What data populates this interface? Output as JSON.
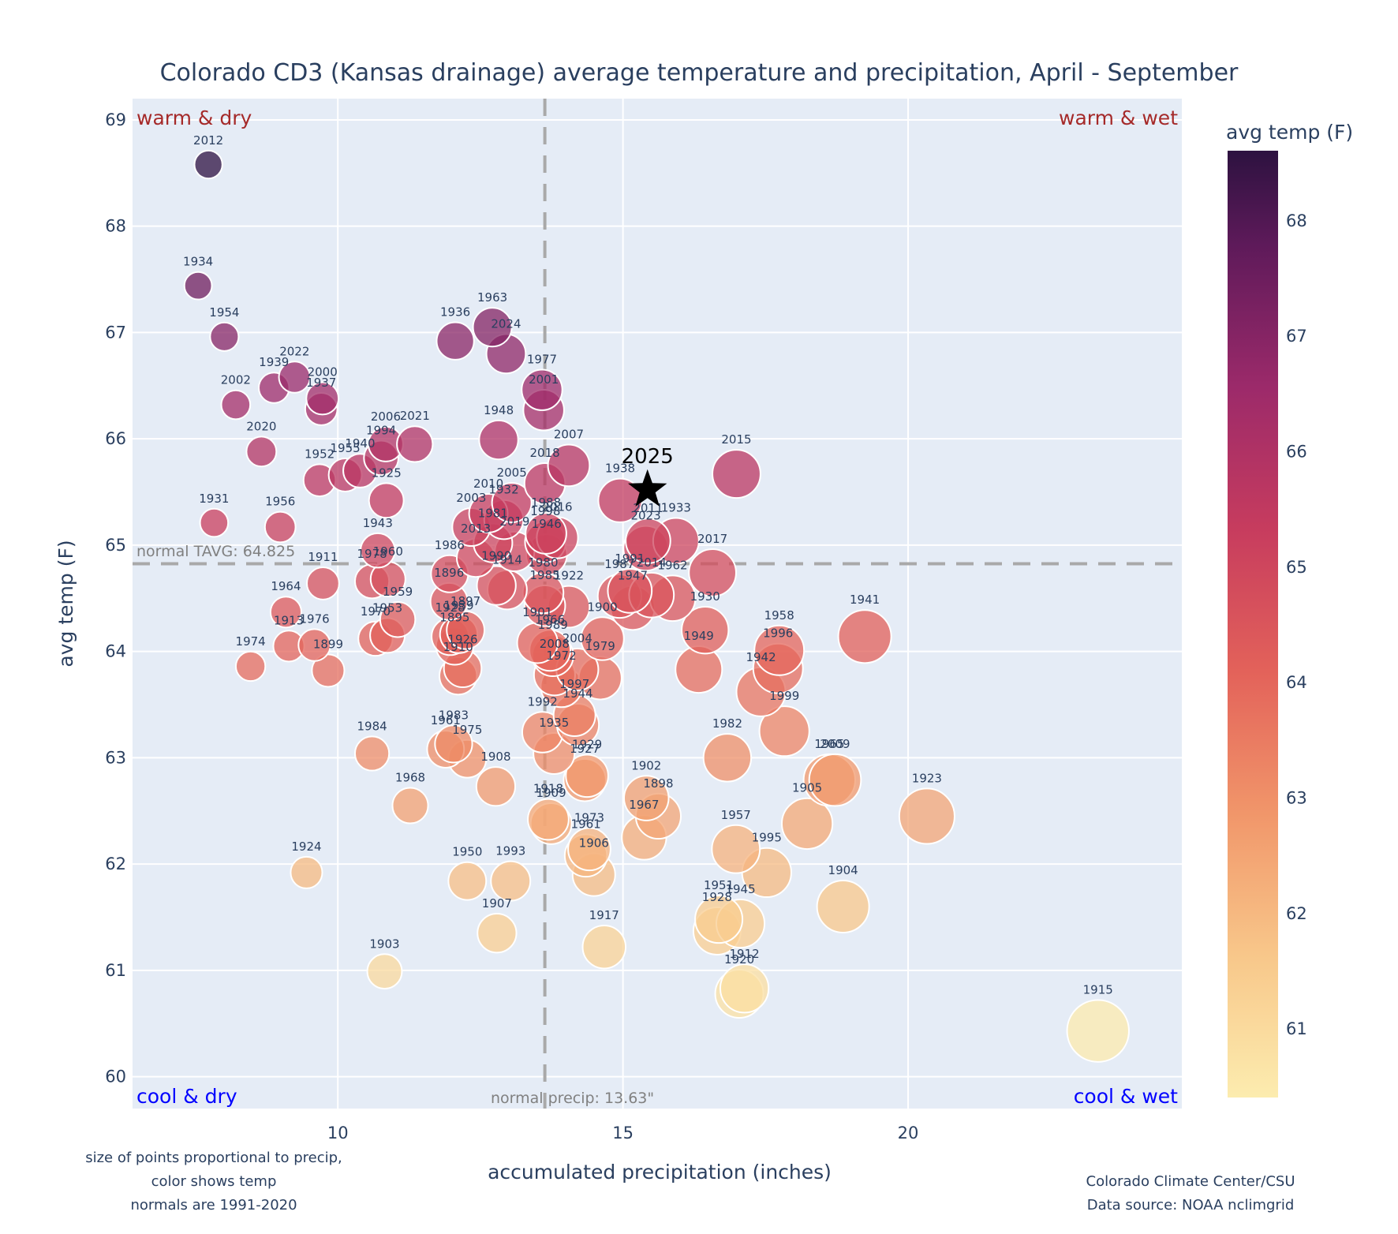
{
  "chart_data": {
    "type": "scatter",
    "title": "Colorado CD3 (Kansas drainage) average temperature and precipitation, April - September",
    "xlabel": "accumulated precipitation (inches)",
    "ylabel": "avg temp (F)",
    "xlim": [
      6.4,
      24.8
    ],
    "ylim": [
      59.7,
      69.2
    ],
    "xticks": [
      10,
      15,
      20
    ],
    "yticks": [
      60,
      61,
      62,
      63,
      64,
      65,
      66,
      67,
      68,
      69
    ],
    "grid": true,
    "colorbar": {
      "title": "avg temp (F)",
      "range": [
        60.4,
        68.6
      ],
      "ticks": [
        61,
        62,
        63,
        64,
        65,
        66,
        67,
        68
      ],
      "colormap": "magma_r"
    },
    "normals": {
      "tavg": 64.825,
      "tavg_label": "normal TAVG: 64.825",
      "precip": 13.63,
      "precip_label": "normal precip: 13.63\""
    },
    "quadrants": {
      "top_left": "warm & dry",
      "top_right": "warm & wet",
      "bottom_left": "cool & dry",
      "bottom_right": "cool & wet"
    },
    "highlight": {
      "year": "2025",
      "x": 15.43,
      "y": 65.52,
      "marker": "star"
    },
    "notes_left": [
      "size of points proportional to precip,",
      "color shows temp",
      "normals are 1991-2020"
    ],
    "notes_right": [
      "Colorado Climate Center/CSU",
      "Data source: NOAA nclimgrid"
    ],
    "points": [
      {
        "year": "2012",
        "x": 7.73,
        "y": 68.58
      },
      {
        "year": "1934",
        "x": 7.55,
        "y": 67.44
      },
      {
        "year": "1954",
        "x": 8.01,
        "y": 66.96
      },
      {
        "year": "1939",
        "x": 8.88,
        "y": 66.48
      },
      {
        "year": "2022",
        "x": 9.24,
        "y": 66.58
      },
      {
        "year": "2002",
        "x": 8.21,
        "y": 66.32
      },
      {
        "year": "2000",
        "x": 9.73,
        "y": 66.38
      },
      {
        "year": "1937",
        "x": 9.71,
        "y": 66.28
      },
      {
        "year": "2020",
        "x": 8.66,
        "y": 65.88
      },
      {
        "year": "1952",
        "x": 9.68,
        "y": 65.61
      },
      {
        "year": "1955",
        "x": 10.13,
        "y": 65.66
      },
      {
        "year": "1940",
        "x": 10.39,
        "y": 65.7
      },
      {
        "year": "2006",
        "x": 10.84,
        "y": 65.95
      },
      {
        "year": "1994",
        "x": 10.76,
        "y": 65.82
      },
      {
        "year": "2021",
        "x": 11.35,
        "y": 65.95
      },
      {
        "year": "1925",
        "x": 10.85,
        "y": 65.42
      },
      {
        "year": "1931",
        "x": 7.83,
        "y": 65.21
      },
      {
        "year": "1956",
        "x": 8.99,
        "y": 65.17
      },
      {
        "year": "1943",
        "x": 10.7,
        "y": 64.95
      },
      {
        "year": "1978",
        "x": 10.6,
        "y": 64.66
      },
      {
        "year": "1960",
        "x": 10.88,
        "y": 64.68
      },
      {
        "year": "1911",
        "x": 9.74,
        "y": 64.64
      },
      {
        "year": "1964",
        "x": 9.09,
        "y": 64.37
      },
      {
        "year": "1913",
        "x": 9.14,
        "y": 64.05
      },
      {
        "year": "1976",
        "x": 9.59,
        "y": 64.06
      },
      {
        "year": "1899",
        "x": 9.83,
        "y": 63.82
      },
      {
        "year": "1974",
        "x": 8.47,
        "y": 63.86
      },
      {
        "year": "1970",
        "x": 10.66,
        "y": 64.12
      },
      {
        "year": "1953",
        "x": 10.87,
        "y": 64.15
      },
      {
        "year": "1959",
        "x": 11.05,
        "y": 64.3
      },
      {
        "year": "1936",
        "x": 12.06,
        "y": 66.92
      },
      {
        "year": "1963",
        "x": 12.71,
        "y": 67.05
      },
      {
        "year": "2024",
        "x": 12.95,
        "y": 66.8
      },
      {
        "year": "1977",
        "x": 13.58,
        "y": 66.46
      },
      {
        "year": "2001",
        "x": 13.61,
        "y": 66.27
      },
      {
        "year": "1948",
        "x": 12.82,
        "y": 65.99
      },
      {
        "year": "2007",
        "x": 14.05,
        "y": 65.75
      },
      {
        "year": "2018",
        "x": 13.63,
        "y": 65.58
      },
      {
        "year": "2005",
        "x": 13.05,
        "y": 65.4
      },
      {
        "year": "2010",
        "x": 12.64,
        "y": 65.3
      },
      {
        "year": "1932",
        "x": 12.91,
        "y": 65.24
      },
      {
        "year": "2003",
        "x": 12.34,
        "y": 65.17
      },
      {
        "year": "1988",
        "x": 13.65,
        "y": 65.11
      },
      {
        "year": "1998",
        "x": 13.64,
        "y": 65.03
      },
      {
        "year": "2016",
        "x": 13.85,
        "y": 65.07
      },
      {
        "year": "1981",
        "x": 12.72,
        "y": 65.02
      },
      {
        "year": "2019",
        "x": 13.1,
        "y": 64.94
      },
      {
        "year": "2013",
        "x": 12.42,
        "y": 64.88
      },
      {
        "year": "1946",
        "x": 13.66,
        "y": 64.91
      },
      {
        "year": "1986",
        "x": 11.96,
        "y": 64.73
      },
      {
        "year": "1990",
        "x": 12.78,
        "y": 64.62
      },
      {
        "year": "1914",
        "x": 12.97,
        "y": 64.58
      },
      {
        "year": "1980",
        "x": 13.6,
        "y": 64.55
      },
      {
        "year": "1985",
        "x": 13.63,
        "y": 64.43
      },
      {
        "year": "1922",
        "x": 14.05,
        "y": 64.42
      },
      {
        "year": "1896",
        "x": 11.95,
        "y": 64.47
      },
      {
        "year": "1897",
        "x": 12.24,
        "y": 64.2
      },
      {
        "year": "1928",
        "x": 11.97,
        "y": 64.14
      },
      {
        "year": "1939b",
        "x": 12.12,
        "y": 64.16
      },
      {
        "year": "1895",
        "x": 12.05,
        "y": 64.05
      },
      {
        "year": "1926",
        "x": 12.19,
        "y": 63.84
      },
      {
        "year": "1910",
        "x": 12.11,
        "y": 63.77
      },
      {
        "year": "1901",
        "x": 13.5,
        "y": 64.08
      },
      {
        "year": "1966",
        "x": 13.72,
        "y": 64.01
      },
      {
        "year": "1938",
        "x": 14.95,
        "y": 65.42
      },
      {
        "year": "2023",
        "x": 15.4,
        "y": 64.97
      },
      {
        "year": "1933",
        "x": 15.93,
        "y": 65.04
      },
      {
        "year": "2011",
        "x": 15.44,
        "y": 65.04
      },
      {
        "year": "2015",
        "x": 16.99,
        "y": 65.67
      },
      {
        "year": "2017",
        "x": 16.57,
        "y": 64.74
      },
      {
        "year": "1991",
        "x": 15.12,
        "y": 64.57
      },
      {
        "year": "1987",
        "x": 14.94,
        "y": 64.52
      },
      {
        "year": "2014",
        "x": 15.5,
        "y": 64.53
      },
      {
        "year": "1962",
        "x": 15.87,
        "y": 64.5
      },
      {
        "year": "1947",
        "x": 15.17,
        "y": 64.41
      },
      {
        "year": "1900",
        "x": 14.64,
        "y": 64.12
      },
      {
        "year": "1930",
        "x": 16.44,
        "y": 64.2
      },
      {
        "year": "1949",
        "x": 16.33,
        "y": 63.83
      },
      {
        "year": "1941",
        "x": 19.24,
        "y": 64.14
      },
      {
        "year": "1958",
        "x": 17.74,
        "y": 64.01
      },
      {
        "year": "1996",
        "x": 17.72,
        "y": 63.84
      },
      {
        "year": "1942",
        "x": 17.42,
        "y": 63.62
      },
      {
        "year": "1999",
        "x": 17.83,
        "y": 63.25
      },
      {
        "year": "1982",
        "x": 16.83,
        "y": 63.0
      },
      {
        "year": "1965",
        "x": 18.62,
        "y": 62.79
      },
      {
        "year": "2009",
        "x": 18.72,
        "y": 62.79
      },
      {
        "year": "1905",
        "x": 18.23,
        "y": 62.38
      },
      {
        "year": "1923",
        "x": 20.33,
        "y": 62.45
      },
      {
        "year": "1989",
        "x": 13.77,
        "y": 63.96
      },
      {
        "year": "2008",
        "x": 13.8,
        "y": 63.78
      },
      {
        "year": "2004",
        "x": 14.2,
        "y": 63.83
      },
      {
        "year": "1979",
        "x": 14.6,
        "y": 63.75
      },
      {
        "year": "1972",
        "x": 13.92,
        "y": 63.67
      },
      {
        "year": "1997",
        "x": 14.15,
        "y": 63.4
      },
      {
        "year": "1992",
        "x": 13.59,
        "y": 63.24
      },
      {
        "year": "1944",
        "x": 14.21,
        "y": 63.31
      },
      {
        "year": "1935",
        "x": 13.79,
        "y": 63.04
      },
      {
        "year": "1929",
        "x": 14.37,
        "y": 62.83
      },
      {
        "year": "1927",
        "x": 14.33,
        "y": 62.79
      },
      {
        "year": "1984",
        "x": 10.6,
        "y": 63.04
      },
      {
        "year": "1961",
        "x": 11.89,
        "y": 63.08
      },
      {
        "year": "1983",
        "x": 12.03,
        "y": 63.13
      },
      {
        "year": "1975",
        "x": 12.27,
        "y": 62.99
      },
      {
        "year": "1908",
        "x": 12.77,
        "y": 62.73
      },
      {
        "year": "1968",
        "x": 11.27,
        "y": 62.55
      },
      {
        "year": "1918",
        "x": 13.69,
        "y": 62.42
      },
      {
        "year": "1909",
        "x": 13.74,
        "y": 62.38
      },
      {
        "year": "1902",
        "x": 15.41,
        "y": 62.62
      },
      {
        "year": "1898",
        "x": 15.62,
        "y": 62.45
      },
      {
        "year": "1967",
        "x": 15.37,
        "y": 62.25
      },
      {
        "year": "1973",
        "x": 14.41,
        "y": 62.14
      },
      {
        "year": "1961b",
        "x": 14.35,
        "y": 62.08
      },
      {
        "year": "1906",
        "x": 14.49,
        "y": 61.9
      },
      {
        "year": "1957",
        "x": 16.98,
        "y": 62.14
      },
      {
        "year": "1995",
        "x": 17.52,
        "y": 61.92
      },
      {
        "year": "1904",
        "x": 18.86,
        "y": 61.6
      },
      {
        "year": "1924",
        "x": 9.45,
        "y": 61.92
      },
      {
        "year": "1950",
        "x": 12.27,
        "y": 61.84
      },
      {
        "year": "1993",
        "x": 13.03,
        "y": 61.84
      },
      {
        "year": "1907",
        "x": 12.79,
        "y": 61.35
      },
      {
        "year": "1917",
        "x": 14.67,
        "y": 61.22
      },
      {
        "year": "1951",
        "x": 16.68,
        "y": 61.48
      },
      {
        "year": "1928b",
        "x": 16.65,
        "y": 61.37
      },
      {
        "year": "1945",
        "x": 17.06,
        "y": 61.44
      },
      {
        "year": "1912",
        "x": 17.13,
        "y": 60.83
      },
      {
        "year": "1920",
        "x": 17.04,
        "y": 60.78
      },
      {
        "year": "1903",
        "x": 10.82,
        "y": 60.99
      },
      {
        "year": "1915",
        "x": 23.33,
        "y": 60.43
      }
    ]
  }
}
